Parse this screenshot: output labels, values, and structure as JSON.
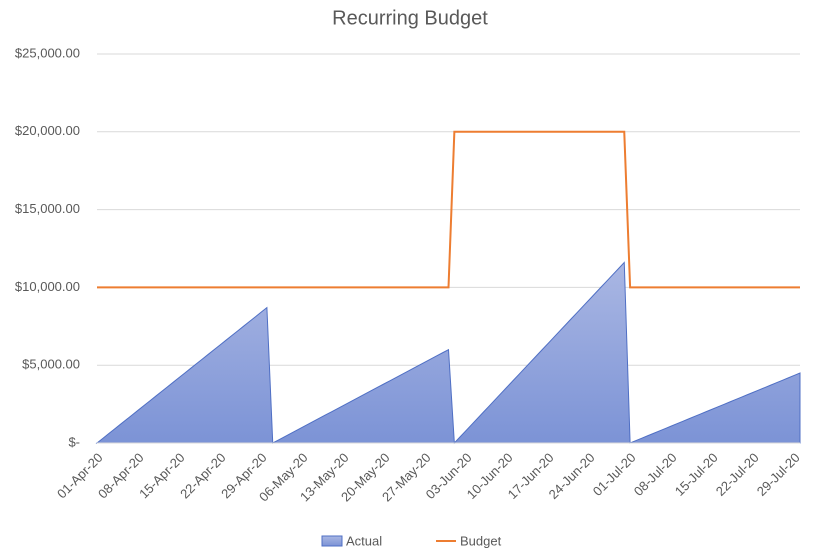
{
  "chart_data": {
    "type": "area-line",
    "title": "Recurring Budget",
    "categories": [
      "01-Apr-20",
      null,
      null,
      null,
      null,
      null,
      null,
      "08-Apr-20",
      null,
      null,
      null,
      null,
      null,
      null,
      "15-Apr-20",
      null,
      null,
      null,
      null,
      null,
      null,
      "22-Apr-20",
      null,
      null,
      null,
      null,
      null,
      null,
      "29-Apr-20",
      null,
      null,
      null,
      null,
      null,
      null,
      "06-May-20",
      null,
      null,
      null,
      null,
      null,
      null,
      "13-May-20",
      null,
      null,
      null,
      null,
      null,
      null,
      "20-May-20",
      null,
      null,
      null,
      null,
      null,
      null,
      "27-May-20",
      null,
      null,
      null,
      null,
      null,
      null,
      "03-Jun-20",
      null,
      null,
      null,
      null,
      null,
      null,
      "10-Jun-20",
      null,
      null,
      null,
      null,
      null,
      null,
      "17-Jun-20",
      null,
      null,
      null,
      null,
      null,
      null,
      "24-Jun-20",
      null,
      null,
      null,
      null,
      null,
      null,
      "01-Jul-20",
      null,
      null,
      null,
      null,
      null,
      null,
      "08-Jul-20",
      null,
      null,
      null,
      null,
      null,
      null,
      "15-Jul-20",
      null,
      null,
      null,
      null,
      null,
      null,
      "22-Jul-20",
      null,
      null,
      null,
      null,
      null,
      null,
      "29-Jul-20",
      null
    ],
    "series": [
      {
        "name": "Actual",
        "type": "area",
        "color": "#8497d8",
        "values": [
          0,
          300,
          600,
          900,
          1200,
          1500,
          1800,
          2100,
          2400,
          2700,
          3000,
          3300,
          3600,
          3900,
          4200,
          4500,
          4800,
          5100,
          5400,
          5700,
          6000,
          6300,
          6600,
          6900,
          7200,
          7500,
          7800,
          8100,
          8400,
          8700,
          0,
          200,
          400,
          600,
          800,
          1000,
          1200,
          1400,
          1600,
          1800,
          2000,
          2200,
          2400,
          2600,
          2800,
          3000,
          3200,
          3400,
          3600,
          3800,
          4000,
          4200,
          4400,
          4600,
          4800,
          5000,
          5200,
          5400,
          5600,
          5800,
          6000,
          0,
          400,
          800,
          1200,
          1600,
          2000,
          2400,
          2800,
          3200,
          3600,
          4000,
          4400,
          4800,
          5200,
          5600,
          6000,
          6400,
          6800,
          7200,
          7600,
          8000,
          8400,
          8800,
          9200,
          9600,
          10000,
          10400,
          10800,
          11200,
          11600,
          0,
          155,
          310,
          465,
          620,
          775,
          930,
          1085,
          1240,
          1395,
          1550,
          1705,
          1860,
          2015,
          2170,
          2325,
          2480,
          2635,
          2790,
          2945,
          3100,
          3255,
          3410,
          3565,
          3720,
          3875,
          4030,
          4185,
          4340,
          4495
        ]
      },
      {
        "name": "Budget",
        "type": "line",
        "color": "#ed7d31",
        "values": [
          10000,
          10000,
          10000,
          10000,
          10000,
          10000,
          10000,
          10000,
          10000,
          10000,
          10000,
          10000,
          10000,
          10000,
          10000,
          10000,
          10000,
          10000,
          10000,
          10000,
          10000,
          10000,
          10000,
          10000,
          10000,
          10000,
          10000,
          10000,
          10000,
          10000,
          10000,
          10000,
          10000,
          10000,
          10000,
          10000,
          10000,
          10000,
          10000,
          10000,
          10000,
          10000,
          10000,
          10000,
          10000,
          10000,
          10000,
          10000,
          10000,
          10000,
          10000,
          10000,
          10000,
          10000,
          10000,
          10000,
          10000,
          10000,
          10000,
          10000,
          10000,
          20000,
          20000,
          20000,
          20000,
          20000,
          20000,
          20000,
          20000,
          20000,
          20000,
          20000,
          20000,
          20000,
          20000,
          20000,
          20000,
          20000,
          20000,
          20000,
          20000,
          20000,
          20000,
          20000,
          20000,
          20000,
          20000,
          20000,
          20000,
          20000,
          20000,
          10000,
          10000,
          10000,
          10000,
          10000,
          10000,
          10000,
          10000,
          10000,
          10000,
          10000,
          10000,
          10000,
          10000,
          10000,
          10000,
          10000,
          10000,
          10000,
          10000,
          10000,
          10000,
          10000,
          10000,
          10000,
          10000,
          10000,
          10000,
          10000,
          10000
        ]
      }
    ],
    "ylim": [
      0,
      25000
    ],
    "yticks": [
      {
        "value": 0,
        "label": "$-"
      },
      {
        "value": 5000,
        "label": "$5,000.00"
      },
      {
        "value": 10000,
        "label": "$10,000.00"
      },
      {
        "value": 15000,
        "label": "$15,000.00"
      },
      {
        "value": 20000,
        "label": "$20,000.00"
      },
      {
        "value": 25000,
        "label": "$25,000.00"
      }
    ],
    "grid": true,
    "legend": "bottom"
  }
}
